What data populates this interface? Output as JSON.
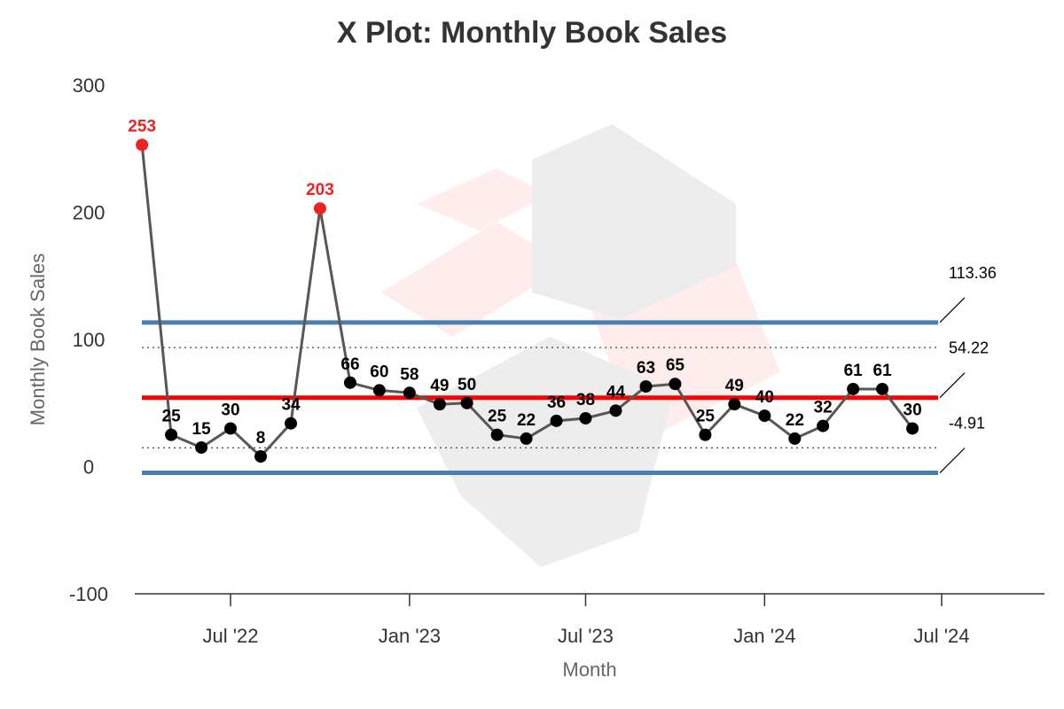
{
  "chart_data": {
    "type": "line",
    "title": "X Plot: Monthly Book Sales",
    "xlabel": "Month",
    "ylabel": "Monthly Book Sales",
    "ylim": [
      -100,
      300
    ],
    "yticks": [
      -100,
      0,
      100,
      200,
      300
    ],
    "xticks": [
      {
        "date": "2022-07-01",
        "label": "Jul '22"
      },
      {
        "date": "2023-01-01",
        "label": "Jan '23"
      },
      {
        "date": "2023-07-01",
        "label": "Jul '23"
      },
      {
        "date": "2024-01-01",
        "label": "Jan '24"
      },
      {
        "date": "2024-07-01",
        "label": "Jul '24"
      }
    ],
    "x": [
      "2022-04",
      "2022-05",
      "2022-06",
      "2022-07",
      "2022-08",
      "2022-09",
      "2022-10",
      "2022-11",
      "2022-12",
      "2023-01",
      "2023-02",
      "2023-03",
      "2023-04",
      "2023-05",
      "2023-06",
      "2023-07",
      "2023-08",
      "2023-09",
      "2023-10",
      "2023-11",
      "2023-12",
      "2024-01",
      "2024-02",
      "2024-03",
      "2024-04",
      "2024-05",
      "2024-06"
    ],
    "values": [
      253,
      25,
      15,
      30,
      8,
      34,
      203,
      66,
      60,
      58,
      49,
      50,
      25,
      22,
      36,
      38,
      44,
      63,
      65,
      25,
      49,
      40,
      22,
      32,
      61,
      61,
      30
    ],
    "out_of_control": [
      true,
      false,
      false,
      false,
      false,
      false,
      true,
      false,
      false,
      false,
      false,
      false,
      false,
      false,
      false,
      false,
      false,
      false,
      false,
      false,
      false,
      false,
      false,
      false,
      false,
      false,
      false
    ],
    "control_limits": {
      "upper": 113.36,
      "center": 54.22,
      "lower": -4.91,
      "upper_label": "113.36",
      "center_label": "54.22",
      "lower_label": "-4.91"
    },
    "colors": {
      "line": "#5a5650",
      "point": "#000000",
      "out_of_control": "#ee2222",
      "center_line": "#ff0000",
      "control_limit": "#4a7fb0",
      "zone_line": "#444444",
      "axis": "#333333"
    },
    "grid": false,
    "legend": "none"
  }
}
